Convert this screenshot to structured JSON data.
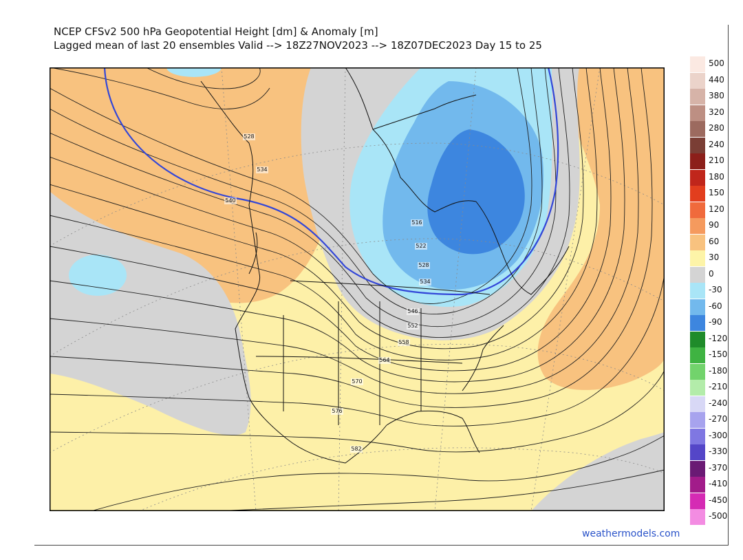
{
  "title": {
    "line1": "NCEP CFSv2 500 hPa Geopotential Height [dm] & Anomaly [m]",
    "line2": "Lagged mean of last 20 ensembles Valid --> 18Z27NOV2023 --> 18Z07DEC2023  Day 15 to 25"
  },
  "credit": "weathermodels.com",
  "scale": [
    {
      "label": "500",
      "color": "#fbe9e2"
    },
    {
      "label": "440",
      "color": "#ebd3ca"
    },
    {
      "label": "380",
      "color": "#d6b3a8"
    },
    {
      "label": "320",
      "color": "#bd8f83"
    },
    {
      "label": "280",
      "color": "#9c6a5f"
    },
    {
      "label": "240",
      "color": "#7a3e35"
    },
    {
      "label": "210",
      "color": "#8c1f1a"
    },
    {
      "label": "180",
      "color": "#c0261b"
    },
    {
      "label": "150",
      "color": "#e23e1e"
    },
    {
      "label": "120",
      "color": "#f06a3c"
    },
    {
      "label": "90",
      "color": "#f59a5e"
    },
    {
      "label": "60",
      "color": "#f8c27f"
    },
    {
      "label": "30",
      "color": "#fdf4a8"
    },
    {
      "label": "0",
      "color": "#d4d4d4"
    },
    {
      "label": "-30",
      "color": "#a9e5f7"
    },
    {
      "label": "-60",
      "color": "#72b9ed"
    },
    {
      "label": "-90",
      "color": "#3d86df"
    },
    {
      "label": "-120",
      "color": "#1f8b2a"
    },
    {
      "label": "-150",
      "color": "#3fb342"
    },
    {
      "label": "-180",
      "color": "#72d36c"
    },
    {
      "label": "-210",
      "color": "#b3ecaa"
    },
    {
      "label": "-240",
      "color": "#d8d8f6"
    },
    {
      "label": "-270",
      "color": "#a7a3ee"
    },
    {
      "label": "-300",
      "color": "#7f77e2"
    },
    {
      "label": "-330",
      "color": "#5446c8"
    },
    {
      "label": "-370",
      "color": "#6a1a74"
    },
    {
      "label": "-410",
      "color": "#a21c8a"
    },
    {
      "label": "-450",
      "color": "#d52bb4"
    },
    {
      "label": "-500",
      "color": "#f38ce2"
    }
  ],
  "contour_labels": [
    {
      "text": "528"
    },
    {
      "text": "534"
    },
    {
      "text": "540"
    },
    {
      "text": "516"
    },
    {
      "text": "522"
    },
    {
      "text": "528"
    },
    {
      "text": "534"
    },
    {
      "text": "546"
    },
    {
      "text": "552"
    },
    {
      "text": "558"
    },
    {
      "text": "564"
    },
    {
      "text": "570"
    },
    {
      "text": "576"
    },
    {
      "text": "582"
    }
  ],
  "colors": {
    "anomaly_pos_light": "#fdf0a8",
    "anomaly_pos": "#f8c27f",
    "anomaly_neutral": "#d4d4d4",
    "anomaly_neg_light": "#a9e5f7",
    "anomaly_neg": "#72b9ed",
    "anomaly_neg_strong": "#3d86df",
    "contour_540": "#3246d8"
  }
}
